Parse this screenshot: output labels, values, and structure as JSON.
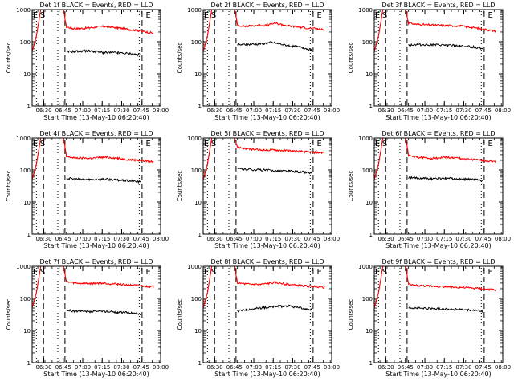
{
  "chart_data": {
    "type": "line",
    "scale": "log",
    "grid": false,
    "ylabel": "Counts/sec",
    "ylim": [
      1,
      1000
    ],
    "y_ticks": [
      "1",
      "10",
      "100",
      "1000"
    ],
    "xlabel": "Start Time (13-May-10 06:20:40)",
    "x_ticks": [
      "06:30",
      "06:45",
      "07:00",
      "07:15",
      "07:30",
      "07:45",
      "08:00"
    ],
    "colors": {
      "events": "#000000",
      "lld": "#ff0000",
      "axes": "#000000"
    },
    "panel_markers": [
      "E",
      "S",
      "E"
    ],
    "panels": [
      {
        "title": "Det 1f BLACK = Events, RED = LLD",
        "lld": [
          [
            0,
            50
          ],
          [
            3,
            150
          ],
          [
            6,
            1000
          ],
          [
            11,
            1000
          ],
          [
            22,
            1000
          ],
          [
            24,
            290
          ],
          [
            28,
            260
          ],
          [
            33,
            255
          ],
          [
            40,
            270
          ],
          [
            50,
            300
          ],
          [
            55,
            285
          ],
          [
            60,
            270
          ],
          [
            68,
            240
          ],
          [
            75,
            220
          ],
          [
            80,
            200
          ],
          [
            85,
            185
          ]
        ],
        "events": [
          [
            24,
            48
          ],
          [
            30,
            50
          ],
          [
            40,
            52
          ],
          [
            50,
            46
          ],
          [
            60,
            45
          ],
          [
            70,
            42
          ],
          [
            76,
            38
          ]
        ]
      },
      {
        "title": "Det 2f BLACK = Events, RED = LLD",
        "lld": [
          [
            0,
            50
          ],
          [
            3,
            150
          ],
          [
            6,
            1000
          ],
          [
            11,
            1000
          ],
          [
            22,
            1000
          ],
          [
            24,
            330
          ],
          [
            30,
            300
          ],
          [
            40,
            330
          ],
          [
            45,
            320
          ],
          [
            50,
            380
          ],
          [
            55,
            340
          ],
          [
            60,
            310
          ],
          [
            68,
            280
          ],
          [
            75,
            260
          ],
          [
            80,
            250
          ],
          [
            85,
            230
          ]
        ],
        "events": [
          [
            24,
            80
          ],
          [
            30,
            82
          ],
          [
            40,
            85
          ],
          [
            48,
            95
          ],
          [
            52,
            88
          ],
          [
            60,
            75
          ],
          [
            70,
            65
          ],
          [
            76,
            55
          ]
        ]
      },
      {
        "title": "Det 3f BLACK = Events, RED = LLD",
        "lld": [
          [
            0,
            50
          ],
          [
            3,
            150
          ],
          [
            6,
            1000
          ],
          [
            11,
            1000
          ],
          [
            22,
            1000
          ],
          [
            24,
            380
          ],
          [
            30,
            350
          ],
          [
            40,
            330
          ],
          [
            50,
            320
          ],
          [
            60,
            310
          ],
          [
            68,
            280
          ],
          [
            75,
            250
          ],
          [
            80,
            230
          ],
          [
            85,
            215
          ]
        ],
        "events": [
          [
            24,
            80
          ],
          [
            30,
            82
          ],
          [
            40,
            80
          ],
          [
            50,
            78
          ],
          [
            60,
            75
          ],
          [
            70,
            68
          ],
          [
            76,
            62
          ]
        ]
      },
      {
        "title": "Det 4f BLACK = Events, RED = LLD",
        "lld": [
          [
            0,
            50
          ],
          [
            3,
            150
          ],
          [
            6,
            1000
          ],
          [
            11,
            1000
          ],
          [
            22,
            1000
          ],
          [
            24,
            260
          ],
          [
            30,
            240
          ],
          [
            40,
            230
          ],
          [
            50,
            250
          ],
          [
            55,
            245
          ],
          [
            60,
            230
          ],
          [
            68,
            210
          ],
          [
            75,
            200
          ],
          [
            80,
            190
          ],
          [
            85,
            180
          ]
        ],
        "events": [
          [
            24,
            55
          ],
          [
            30,
            52
          ],
          [
            40,
            50
          ],
          [
            50,
            52
          ],
          [
            60,
            48
          ],
          [
            70,
            45
          ],
          [
            76,
            42
          ]
        ]
      },
      {
        "title": "Det 5f BLACK = Events, RED = LLD",
        "lld": [
          [
            0,
            50
          ],
          [
            3,
            150
          ],
          [
            6,
            1000
          ],
          [
            11,
            1000
          ],
          [
            22,
            1000
          ],
          [
            24,
            520
          ],
          [
            30,
            460
          ],
          [
            40,
            420
          ],
          [
            50,
            420
          ],
          [
            60,
            400
          ],
          [
            68,
            380
          ],
          [
            75,
            360
          ],
          [
            80,
            350
          ],
          [
            85,
            355
          ]
        ],
        "events": [
          [
            24,
            110
          ],
          [
            30,
            105
          ],
          [
            40,
            100
          ],
          [
            50,
            95
          ],
          [
            60,
            92
          ],
          [
            70,
            85
          ],
          [
            76,
            80
          ]
        ]
      },
      {
        "title": "Det 6f BLACK = Events, RED = LLD",
        "lld": [
          [
            0,
            50
          ],
          [
            3,
            150
          ],
          [
            6,
            1000
          ],
          [
            11,
            1000
          ],
          [
            22,
            1000
          ],
          [
            24,
            280
          ],
          [
            30,
            250
          ],
          [
            40,
            230
          ],
          [
            50,
            250
          ],
          [
            55,
            240
          ],
          [
            60,
            230
          ],
          [
            68,
            210
          ],
          [
            75,
            200
          ],
          [
            80,
            190
          ],
          [
            85,
            180
          ]
        ],
        "events": [
          [
            24,
            58
          ],
          [
            30,
            55
          ],
          [
            40,
            53
          ],
          [
            50,
            55
          ],
          [
            60,
            52
          ],
          [
            70,
            50
          ],
          [
            76,
            48
          ]
        ]
      },
      {
        "title": "Det 7f BLACK = Events, RED = LLD",
        "lld": [
          [
            0,
            50
          ],
          [
            3,
            150
          ],
          [
            6,
            1000
          ],
          [
            11,
            1000
          ],
          [
            22,
            1000
          ],
          [
            24,
            330
          ],
          [
            30,
            300
          ],
          [
            40,
            290
          ],
          [
            50,
            300
          ],
          [
            55,
            285
          ],
          [
            60,
            280
          ],
          [
            68,
            260
          ],
          [
            75,
            250
          ],
          [
            80,
            240
          ],
          [
            85,
            230
          ]
        ],
        "events": [
          [
            24,
            42
          ],
          [
            30,
            40
          ],
          [
            40,
            38
          ],
          [
            50,
            40
          ],
          [
            60,
            37
          ],
          [
            70,
            35
          ],
          [
            76,
            32
          ]
        ]
      },
      {
        "title": "Det 8f BLACK = Events, RED = LLD",
        "lld": [
          [
            0,
            50
          ],
          [
            3,
            150
          ],
          [
            6,
            1000
          ],
          [
            11,
            1000
          ],
          [
            22,
            1000
          ],
          [
            24,
            300
          ],
          [
            30,
            280
          ],
          [
            40,
            270
          ],
          [
            50,
            310
          ],
          [
            55,
            290
          ],
          [
            60,
            270
          ],
          [
            68,
            250
          ],
          [
            75,
            240
          ],
          [
            80,
            230
          ],
          [
            85,
            220
          ]
        ],
        "events": [
          [
            24,
            40
          ],
          [
            30,
            45
          ],
          [
            40,
            50
          ],
          [
            50,
            55
          ],
          [
            60,
            58
          ],
          [
            70,
            48
          ],
          [
            76,
            45
          ]
        ]
      },
      {
        "title": "Det 9f BLACK = Events, RED = LLD",
        "lld": [
          [
            0,
            50
          ],
          [
            3,
            150
          ],
          [
            6,
            1000
          ],
          [
            11,
            1000
          ],
          [
            22,
            1000
          ],
          [
            24,
            270
          ],
          [
            30,
            250
          ],
          [
            40,
            240
          ],
          [
            50,
            230
          ],
          [
            60,
            220
          ],
          [
            68,
            210
          ],
          [
            75,
            200
          ],
          [
            80,
            190
          ],
          [
            85,
            180
          ]
        ],
        "events": [
          [
            24,
            52
          ],
          [
            30,
            50
          ],
          [
            40,
            48
          ],
          [
            50,
            47
          ],
          [
            60,
            45
          ],
          [
            70,
            42
          ],
          [
            76,
            40
          ]
        ]
      }
    ]
  }
}
